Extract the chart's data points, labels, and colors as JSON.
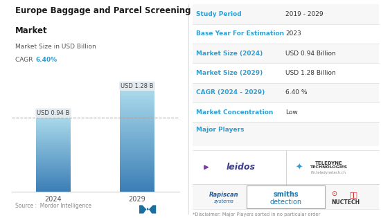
{
  "title_line1": "Europe Baggage and Parcel Screening",
  "title_line2": "Market",
  "subtitle": "Market Size in USD Billion",
  "cagr_label": "CAGR ",
  "cagr_value": "6.40%",
  "bar_years": [
    "2024",
    "2029"
  ],
  "bar_values": [
    0.94,
    1.28
  ],
  "bar_labels": [
    "USD 0.94 B",
    "USD 1.28 B"
  ],
  "bar_color_top": "#a8d8ea",
  "bar_color_bottom": "#3a7db5",
  "dashed_line_y": 0.94,
  "source_text": "Source :  Mordor Intelligence",
  "table_headers": [
    "Study Period",
    "Base Year For Estimation",
    "Market Size (2024)",
    "Market Size (2029)",
    "CAGR (2024 - 2029)",
    "Market Concentration",
    "Major Players"
  ],
  "table_values": [
    "2019 - 2029",
    "2023",
    "USD 0.94 Billion",
    "USD 1.28 Billion",
    "6.40 %",
    "Low",
    ""
  ],
  "header_color": "#2e9fd4",
  "table_bg_alt": "#f5f5f5",
  "table_bg_white": "#ffffff",
  "divider_color": "#dddddd",
  "background_color": "#ffffff",
  "title_fontsize": 8.5,
  "subtitle_fontsize": 6.5,
  "cagr_fontsize": 6.5,
  "bar_label_fontsize": 6,
  "year_fontsize": 7,
  "source_fontsize": 5.5,
  "table_fontsize": 6.5
}
